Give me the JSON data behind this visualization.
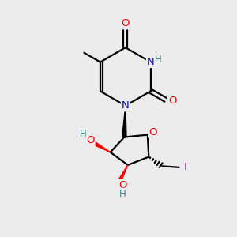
{
  "background_color": "#ececec",
  "atom_colors": {
    "C": "#000000",
    "N": "#0000cd",
    "O": "#ff0000",
    "I": "#cc00cc",
    "H": "#3a8a8a"
  },
  "bond_color": "#000000",
  "line_width": 1.6,
  "font_size_atom": 9.5,
  "font_size_h": 8.5
}
